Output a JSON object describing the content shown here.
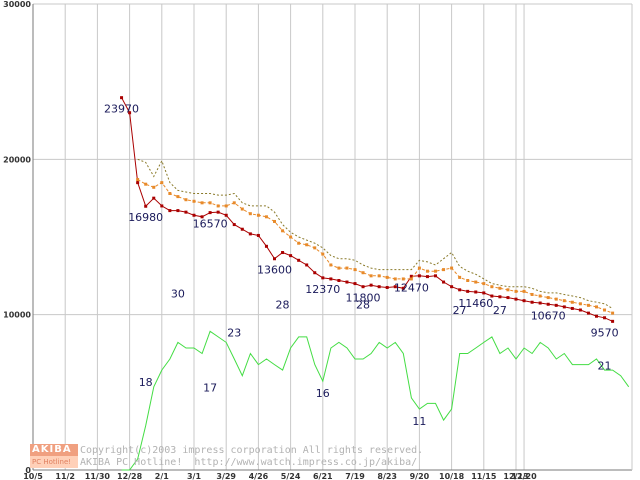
{
  "chart_data": {
    "type": "line",
    "title": "",
    "xlabel": "",
    "ylabel": "",
    "ylim": [
      0,
      30000
    ],
    "y2lim": [
      0,
      84
    ],
    "y_ticks": [
      "0",
      "10000",
      "20000",
      "30000"
    ],
    "grid": true,
    "x_tick_labels": [
      "10/5",
      "11/2",
      "11/30",
      "12/28",
      "2/1",
      "3/1",
      "3/29",
      "4/26",
      "5/24",
      "6/21",
      "7/19",
      "8/23",
      "9/20",
      "10/18",
      "11/15",
      "12/13",
      "12/20"
    ],
    "series": [
      {
        "name": "price",
        "color": "#aa0000",
        "axis": "left",
        "week_start": 11,
        "values": [
          23970,
          23000,
          18500,
          16980,
          17500,
          17000,
          16700,
          16700,
          16600,
          16400,
          16300,
          16570,
          16600,
          16400,
          15800,
          15500,
          15200,
          15100,
          14400,
          13600,
          14000,
          13800,
          13500,
          13200,
          12700,
          12370,
          12300,
          12200,
          12100,
          12000,
          11800,
          11900,
          11800,
          11750,
          11800,
          11700,
          12470,
          12500,
          12450,
          12500,
          12100,
          11800,
          11600,
          11500,
          11460,
          11400,
          11200,
          11150,
          11100,
          11000,
          10900,
          10800,
          10750,
          10670,
          10600,
          10500,
          10400,
          10300,
          10100,
          9900,
          9800,
          9570
        ]
      },
      {
        "name": "average",
        "color": "#e88a2a",
        "axis": "left",
        "week_start": 13,
        "values": [
          18700,
          18400,
          18200,
          18500,
          17800,
          17600,
          17400,
          17300,
          17200,
          17200,
          17000,
          17000,
          17200,
          16800,
          16500,
          16400,
          16300,
          16000,
          15400,
          15000,
          14600,
          14500,
          14300,
          13900,
          13200,
          13000,
          13000,
          12900,
          12700,
          12500,
          12500,
          12400,
          12300,
          12300,
          12300,
          13000,
          12800,
          12800,
          12900,
          13000,
          12400,
          12200,
          12100,
          12000,
          11800,
          11700,
          11600,
          11500,
          11500,
          11300,
          11200,
          11100,
          11000,
          10900,
          10800,
          10700,
          10600,
          10500,
          10300,
          10100
        ]
      },
      {
        "name": "high",
        "color": "#8a7a2a",
        "axis": "left",
        "week_start": 13,
        "values": [
          20000,
          19800,
          18900,
          19900,
          18500,
          18000,
          17900,
          17800,
          17800,
          17800,
          17700,
          17700,
          17800,
          17200,
          17000,
          17000,
          17000,
          16600,
          15800,
          15300,
          15000,
          14800,
          14600,
          14300,
          13800,
          13600,
          13600,
          13500,
          13200,
          13000,
          12900,
          12900,
          12900,
          12900,
          12900,
          13500,
          13400,
          13200,
          13600,
          14000,
          13100,
          12800,
          12600,
          12300,
          12000,
          11900,
          11800,
          11800,
          11800,
          11700,
          11500,
          11400,
          11400,
          11300,
          11200,
          11100,
          10900,
          10800,
          10700,
          10400
        ]
      },
      {
        "name": "shops",
        "color": "#44dd44",
        "axis": "right",
        "week_start": 11,
        "values": [
          0,
          0,
          2,
          8,
          15,
          18,
          20,
          23,
          22,
          22,
          21,
          25,
          24,
          23,
          20,
          17,
          21,
          19,
          20,
          19,
          18,
          22,
          24,
          24,
          19,
          16,
          22,
          23,
          22,
          20,
          20,
          21,
          23,
          22,
          23,
          21,
          13,
          11,
          12,
          12,
          9,
          11,
          21,
          21,
          22,
          23,
          24,
          21,
          22,
          20,
          22,
          21,
          23,
          22,
          20,
          21,
          19,
          19,
          19,
          20,
          18,
          18,
          17,
          15
        ]
      }
    ],
    "price_labels": [
      {
        "label": "23970",
        "week": 11,
        "value": 23970
      },
      {
        "label": "16980",
        "week": 14,
        "value": 16980
      },
      {
        "label": "16570",
        "week": 22,
        "value": 16570
      },
      {
        "label": "13600",
        "week": 30,
        "value": 13600
      },
      {
        "label": "12370",
        "week": 36,
        "value": 12370
      },
      {
        "label": "11800",
        "week": 41,
        "value": 11800
      },
      {
        "label": "12470",
        "week": 47,
        "value": 12470
      },
      {
        "label": "11460",
        "week": 55,
        "value": 11460
      },
      {
        "label": "10670",
        "week": 64,
        "value": 10670
      },
      {
        "label": "9570",
        "week": 72,
        "value": 9570
      }
    ],
    "count_labels": [
      {
        "label": "18",
        "week": 14,
        "value": 18
      },
      {
        "label": "30",
        "week": 18,
        "value": 30
      },
      {
        "label": "17",
        "week": 22,
        "value": 17
      },
      {
        "label": "23",
        "week": 25,
        "value": 23
      },
      {
        "label": "28",
        "week": 31,
        "value": 28
      },
      {
        "label": "16",
        "week": 36,
        "value": 16
      },
      {
        "label": "28",
        "week": 41,
        "value": 28
      },
      {
        "label": "11",
        "week": 48,
        "value": 11
      },
      {
        "label": "27",
        "week": 53,
        "value": 27
      },
      {
        "label": "27",
        "week": 58,
        "value": 27
      },
      {
        "label": "21",
        "week": 71,
        "value": 21
      }
    ]
  },
  "logo": {
    "top": "AKIBA",
    "bottom": "PC Hotline!"
  },
  "credit": {
    "line1": "Copyright(c)2003 impress corporation All rights reserved.",
    "line2": "AKIBA PC Hotline!  http://www.watch.impress.co.jp/akiba/"
  },
  "colors": {
    "grid": "#c8c8c8",
    "axis": "#7a7a7a"
  }
}
